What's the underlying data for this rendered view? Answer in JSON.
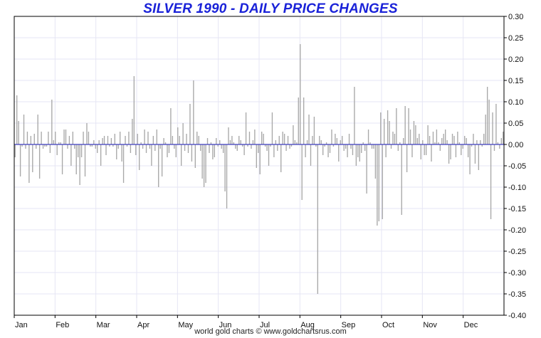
{
  "title": "SILVER 1990 - DAILY PRICE CHANGES",
  "credit": "world gold charts © www.goldchartsrus.com",
  "colors": {
    "title": "#1a22d8",
    "bars": "#a8a8a8",
    "zero_line": "#3d3dbf",
    "grid": "#e6e6f4",
    "axis": "#000000"
  },
  "chart_data": {
    "type": "bar",
    "title": "SILVER 1990 - DAILY PRICE CHANGES",
    "xlabel": "",
    "ylabel": "",
    "ylim": [
      -0.4,
      0.3
    ],
    "y_axis_side": "right",
    "grid": true,
    "x_tick_labels": [
      "Jan",
      "Feb",
      "Mar",
      "Apr",
      "May",
      "Jun",
      "Jul",
      "Aug",
      "Sep",
      "Oct",
      "Nov",
      "Dec"
    ],
    "y_tick_labels": [
      "0.30",
      "0.25",
      "0.20",
      "0.15",
      "0.10",
      "0.05",
      "0.00",
      "-0.05",
      "-0.10",
      "-0.15",
      "-0.20",
      "-0.25",
      "-0.30",
      "-0.35",
      "-0.40"
    ],
    "series": [
      {
        "values": [
          -0.03,
          0.115,
          0.055,
          -0.075,
          -0.005,
          0.07,
          -0.01,
          0.03,
          -0.09,
          0.02,
          -0.065,
          0.025,
          -0.01,
          0.07,
          -0.08,
          0.03,
          -0.01,
          -0.005,
          -0.005,
          0.03,
          -0.02,
          0.105,
          0.01,
          0.03,
          -0.025,
          0.005,
          0.005,
          -0.07,
          0.035,
          0.035,
          -0.01,
          0.02,
          -0.05,
          0.03,
          -0.01,
          -0.07,
          -0.03,
          -0.095,
          -0.03,
          0.03,
          -0.075,
          0.05,
          0.03,
          -0.005,
          -0.005,
          0.01,
          -0.01,
          -0.02,
          0.01,
          -0.05,
          0.015,
          0.02,
          -0.025,
          0.02,
          -0.005,
          0.015,
          -0.005,
          0.025,
          -0.035,
          -0.01,
          0.03,
          -0.04,
          -0.09,
          0.02,
          -0.005,
          0.03,
          -0.02,
          0.06,
          0.16,
          -0.025,
          0.025,
          -0.06,
          0.005,
          -0.01,
          0.035,
          -0.02,
          0.03,
          -0.01,
          -0.05,
          0.02,
          -0.015,
          0.035,
          -0.1,
          -0.01,
          -0.075,
          0.015,
          0.005,
          -0.03,
          -0.02,
          0.085,
          0.02,
          -0.01,
          -0.03,
          0.04,
          0.02,
          -0.05,
          0.05,
          -0.015,
          0.025,
          -0.02,
          0.095,
          -0.04,
          0.15,
          -0.055,
          0.03,
          0.02,
          -0.015,
          -0.08,
          -0.1,
          -0.09,
          0.015,
          -0.02,
          0.005,
          -0.035,
          -0.03,
          0.015,
          -0.005,
          0.01,
          -0.01,
          -0.02,
          -0.11,
          -0.15,
          0.04,
          0.01,
          0.02,
          0.005,
          -0.01,
          -0.015,
          0.02,
          0.01,
          -0.005,
          -0.025,
          0.075,
          -0.005,
          0.03,
          -0.01,
          0.01,
          0.035,
          -0.055,
          -0.02,
          -0.07,
          0.03,
          0.025,
          -0.005,
          -0.015,
          -0.05,
          -0.005,
          0.075,
          -0.03,
          0.01,
          -0.015,
          0.02,
          -0.065,
          0.03,
          0.025,
          -0.015,
          0.02,
          -0.01,
          -0.005,
          0.045,
          0.01,
          0.005,
          0.11,
          0.235,
          -0.13,
          0.11,
          -0.03,
          0.01,
          0.07,
          -0.05,
          0.02,
          0.065,
          -0.005,
          -0.35,
          0.02,
          0.01,
          -0.025,
          -0.005,
          0.005,
          -0.03,
          -0.02,
          0.035,
          -0.005,
          0.025,
          0.015,
          -0.04,
          0.01,
          0.02,
          -0.015,
          -0.01,
          -0.03,
          0.025,
          -0.01,
          -0.025,
          0.135,
          -0.05,
          -0.03,
          -0.04,
          -0.02,
          0.005,
          -0.015,
          -0.115,
          0.035,
          0.005,
          -0.01,
          -0.01,
          -0.08,
          -0.19,
          -0.18,
          0.075,
          -0.175,
          0.06,
          -0.03,
          0.08,
          0.055,
          -0.01,
          0.03,
          0.025,
          0.085,
          -0.015,
          0.005,
          -0.165,
          0.015,
          0.09,
          -0.065,
          0.085,
          0.035,
          -0.03,
          0.055,
          0.045,
          0.015,
          0.025,
          -0.035,
          0.01,
          -0.025,
          -0.025,
          0.045,
          0.02,
          -0.04,
          0.03,
          0.005,
          0.035,
          0.005,
          -0.015,
          0.015,
          0.025,
          0.035,
          0.01,
          -0.045,
          -0.035,
          0.025,
          0.02,
          -0.03,
          0.03,
          0.005,
          -0.025,
          -0.01,
          0.02,
          0.015,
          -0.03,
          -0.07,
          -0.005,
          0.025,
          -0.045,
          0.01,
          -0.06,
          0.01,
          -0.005,
          0.025,
          0.07,
          0.135,
          0.105,
          -0.175,
          0.075,
          -0.015,
          0.095,
          0.005,
          -0.01,
          0.015,
          0.03
        ]
      }
    ]
  }
}
